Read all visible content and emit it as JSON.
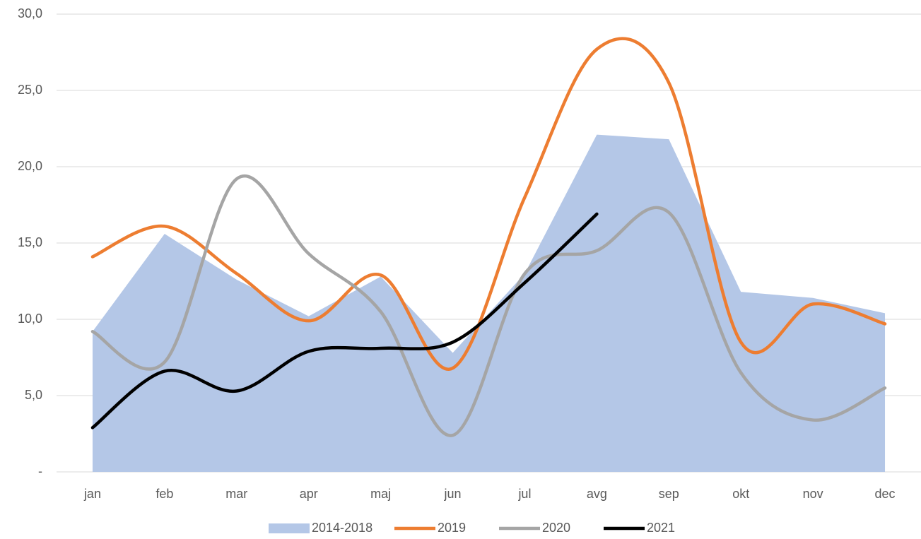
{
  "chart_data": {
    "type": "line",
    "categories": [
      "jan",
      "feb",
      "mar",
      "apr",
      "maj",
      "jun",
      "jul",
      "avg",
      "sep",
      "okt",
      "nov",
      "dec"
    ],
    "series": [
      {
        "name": "2014-2018",
        "color": "#b4c7e7",
        "kind": "area",
        "values": [
          9.2,
          15.6,
          12.6,
          10.2,
          12.8,
          7.8,
          13.0,
          22.1,
          21.8,
          11.8,
          11.4,
          10.4
        ]
      },
      {
        "name": "2019",
        "color": "#ed7d31",
        "values": [
          14.1,
          16.1,
          13.0,
          9.9,
          12.9,
          6.8,
          18.0,
          27.7,
          25.5,
          8.5,
          11.0,
          9.7
        ]
      },
      {
        "name": "2020",
        "color": "#a5a5a5",
        "values": [
          9.2,
          7.2,
          19.2,
          14.3,
          10.5,
          2.4,
          13.0,
          14.5,
          17.0,
          6.5,
          3.4,
          5.5
        ]
      },
      {
        "name": "2021",
        "color": "#000000",
        "values": [
          2.9,
          6.6,
          5.3,
          7.9,
          8.1,
          8.5,
          12.4,
          16.9,
          null,
          null,
          null,
          null
        ]
      }
    ],
    "ylim": [
      0,
      30
    ],
    "yticks": [
      {
        "value": 0,
        "label": "-"
      },
      {
        "value": 5,
        "label": "5,0"
      },
      {
        "value": 10,
        "label": "10,0"
      },
      {
        "value": 15,
        "label": "15,0"
      },
      {
        "value": 20,
        "label": "20,0"
      },
      {
        "value": 25,
        "label": "25,0"
      },
      {
        "value": 30,
        "label": "30,0"
      }
    ],
    "grid": true,
    "smooth": true,
    "legend": "bottom"
  }
}
